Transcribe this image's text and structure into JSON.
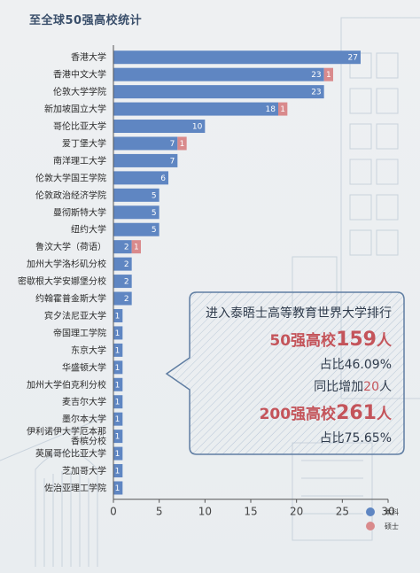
{
  "title": "至全球50强高校统计",
  "colors": {
    "undergrad": "#5f86c2",
    "master": "#d98a8c",
    "navy": "#3a5078",
    "red": "#c4545a"
  },
  "chart_data": {
    "type": "bar",
    "orientation": "horizontal",
    "stacked": true,
    "categories": [
      "香港大学",
      "香港中文大学",
      "伦敦大学学院",
      "新加坡国立大学",
      "哥伦比亚大学",
      "爱丁堡大学",
      "南洋理工大学",
      "伦敦大学国王学院",
      "伦敦政治经济学院",
      "曼彻斯特大学",
      "纽约大学",
      "鲁汶大学（荷语）",
      "加州大学洛杉矶分校",
      "密歇根大学安娜堡分校",
      "约翰霍普金斯大学",
      "宾夕法尼亚大学",
      "帝国理工学院",
      "东京大学",
      "华盛顿大学",
      "加州大学伯克利分校",
      "麦吉尔大学",
      "墨尔本大学",
      "伊利诺伊大学厄本那香槟分校",
      "英属哥伦比亚大学",
      "芝加哥大学",
      "佐治亚理工学院"
    ],
    "series": [
      {
        "name": "本科",
        "values": [
          27,
          23,
          23,
          18,
          10,
          7,
          7,
          6,
          5,
          5,
          5,
          2,
          2,
          2,
          2,
          1,
          1,
          1,
          1,
          1,
          1,
          1,
          1,
          1,
          1,
          1
        ]
      },
      {
        "name": "硕士",
        "values": [
          0,
          1,
          0,
          1,
          0,
          1,
          0,
          0,
          0,
          0,
          0,
          1,
          0,
          0,
          0,
          0,
          0,
          0,
          0,
          0,
          0,
          0,
          0,
          0,
          0,
          0
        ]
      }
    ],
    "xlim": [
      0,
      30
    ],
    "xticks": [
      "0",
      "5",
      "10",
      "15",
      "20",
      "25",
      "30"
    ],
    "grid": false,
    "legend": "bottom-right"
  },
  "legend": {
    "undergrad": "本科",
    "master": "硕士"
  },
  "callout": {
    "line1": "进入泰晤士高等教育世界大学排行",
    "top50_label": "50强高校",
    "top50_value": "159",
    "top50_unit": "人",
    "top50_share": "占比46.09%",
    "yoy_prefix": "同比增加",
    "yoy_value": "20",
    "yoy_unit": "人",
    "top200_label": "200强高校",
    "top200_value": "261",
    "top200_unit": "人",
    "top200_share": "占比75.65%"
  }
}
